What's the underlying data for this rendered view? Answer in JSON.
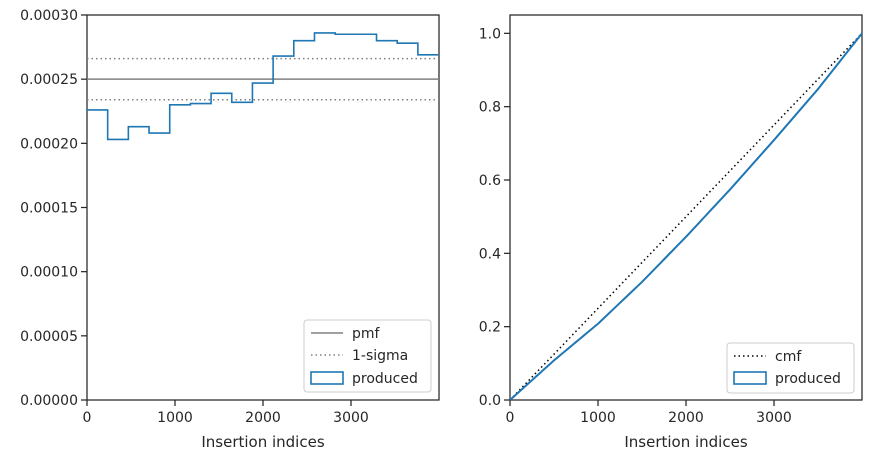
{
  "chart_data": [
    {
      "type": "line",
      "xlabel": "Insertion indices",
      "ylabel": "",
      "xlim": [
        0,
        4000
      ],
      "ylim": [
        0,
        0.0003
      ],
      "xticks": [
        0,
        1000,
        2000,
        3000
      ],
      "xtick_labels": [
        "0",
        "1000",
        "2000",
        "3000"
      ],
      "yticks": [
        0,
        5e-05,
        0.0001,
        0.00015,
        0.0002,
        0.00025,
        0.0003
      ],
      "ytick_labels": [
        "0.00000",
        "0.00005",
        "0.00010",
        "0.00015",
        "0.00020",
        "0.00025",
        "0.00030"
      ],
      "grid": false,
      "legend_position": "lower-right",
      "legend": [
        "pmf",
        "1-sigma",
        "produced"
      ],
      "pmf": 0.00025,
      "sigma_band": [
        0.000234,
        0.000266
      ],
      "bin_edges": [
        0,
        235,
        470,
        705,
        940,
        1175,
        1410,
        1645,
        1880,
        2115,
        2350,
        2585,
        2820,
        3055,
        3290,
        3525,
        3760,
        4000
      ],
      "histogram_values": [
        0.000226,
        0.000203,
        0.000213,
        0.000208,
        0.00023,
        0.000231,
        0.000239,
        0.000232,
        0.000247,
        0.000268,
        0.00028,
        0.000286,
        0.000285,
        0.000285,
        0.00028,
        0.000278,
        0.000269
      ],
      "colors": {
        "pmf": "#808080",
        "sigma": "#808080",
        "produced": "#1f77b4"
      }
    },
    {
      "type": "line",
      "xlabel": "Insertion indices",
      "ylabel": "",
      "xlim": [
        0,
        4000
      ],
      "ylim": [
        0,
        1.05
      ],
      "xticks": [
        0,
        1000,
        2000,
        3000
      ],
      "xtick_labels": [
        "0",
        "1000",
        "2000",
        "3000"
      ],
      "yticks": [
        0,
        0.2,
        0.4,
        0.6,
        0.8,
        1.0
      ],
      "ytick_labels": [
        "0.0",
        "0.2",
        "0.4",
        "0.6",
        "0.8",
        "1.0"
      ],
      "grid": false,
      "legend_position": "lower-right",
      "legend": [
        "cmf",
        "produced"
      ],
      "cmf": {
        "x": [
          0,
          4000
        ],
        "y": [
          0,
          1.0
        ]
      },
      "produced": {
        "x": [
          0,
          500,
          1000,
          1500,
          2000,
          2500,
          3000,
          3500,
          4000
        ],
        "y": [
          0,
          0.108,
          0.208,
          0.322,
          0.445,
          0.574,
          0.709,
          0.848,
          1.0
        ]
      },
      "colors": {
        "cmf": "#000000",
        "produced": "#1f77b4"
      }
    }
  ]
}
